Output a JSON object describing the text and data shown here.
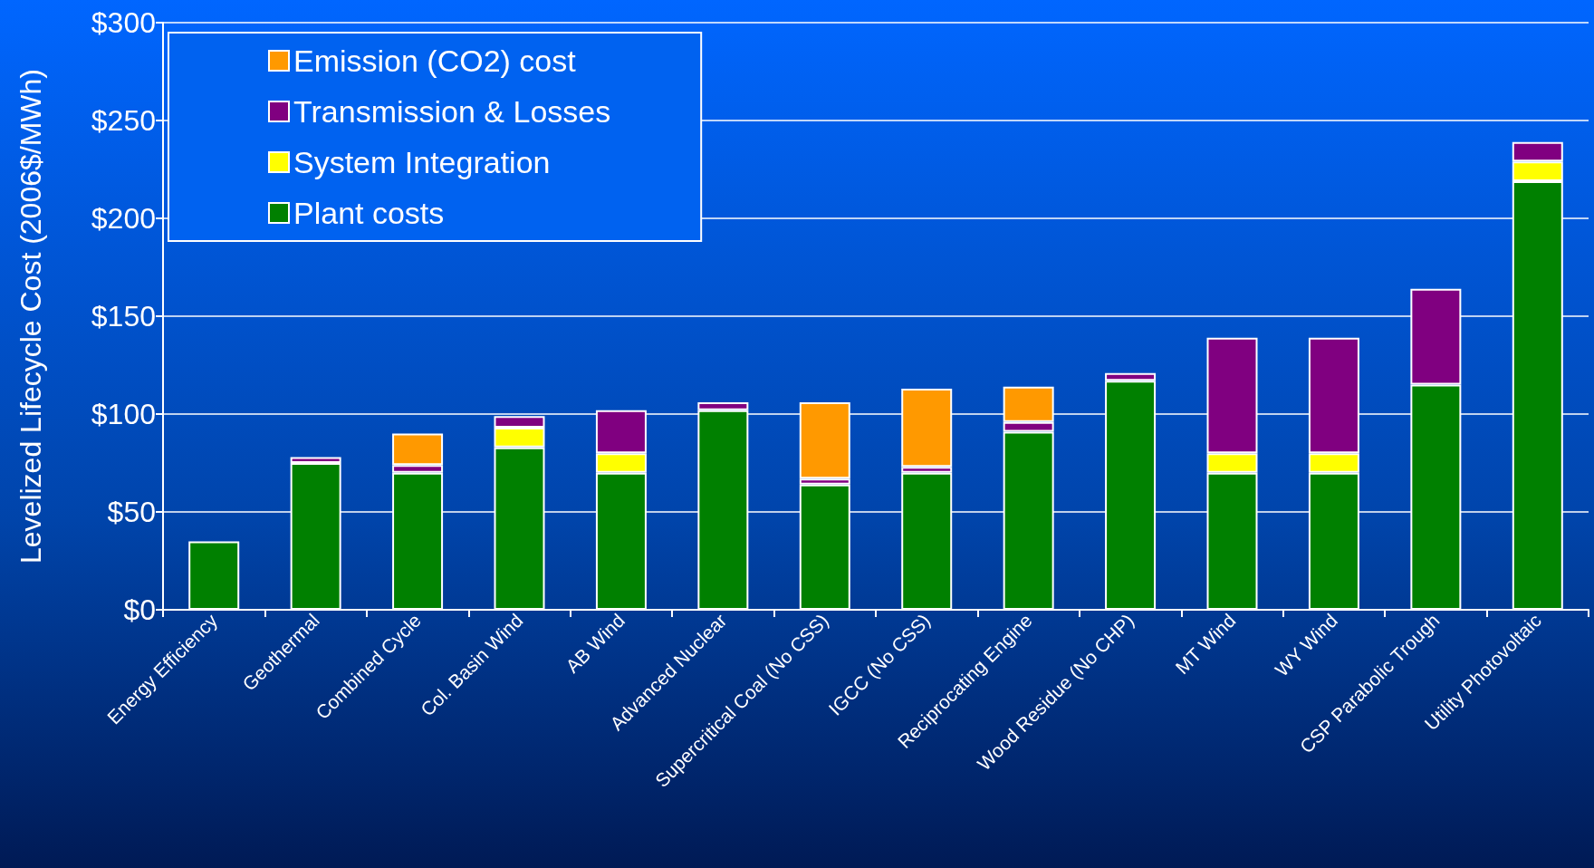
{
  "chart_data": {
    "type": "bar",
    "stacked": true,
    "ylabel": "Levelized Lifecycle Cost (2006$/MWh)",
    "categories": [
      "Energy Efficiency",
      "Geothermal",
      "Combined Cycle",
      "Col. Basin Wind",
      "AB Wind",
      "Advanced Nuclear",
      "Supercritical Coal (No CSS)",
      "IGCC (No CSS)",
      "Reciprocating Engine",
      "Wood Residue (No CHP)",
      "MT Wind",
      "WY Wind",
      "CSP Parabolic Trough",
      "Utility Photovoltaic"
    ],
    "series": [
      {
        "name": "Plant costs",
        "color": "#008000",
        "values": [
          35,
          75,
          70,
          83,
          70,
          102,
          64,
          70,
          91,
          117,
          70,
          70,
          115,
          219
        ]
      },
      {
        "name": "System Integration",
        "color": "#ffff00",
        "values": [
          null,
          null,
          null,
          10,
          10,
          null,
          null,
          null,
          null,
          null,
          10,
          10,
          null,
          10
        ]
      },
      {
        "name": "Transmission & Losses",
        "color": "#800080",
        "values": [
          null,
          3,
          4,
          6,
          22,
          4,
          3,
          3,
          5,
          4,
          59,
          59,
          49,
          10
        ]
      },
      {
        "name": "Emission (CO2) cost",
        "color": "#ff9900",
        "values": [
          null,
          null,
          16,
          null,
          null,
          null,
          39,
          40,
          18,
          null,
          null,
          null,
          null,
          null
        ]
      }
    ],
    "ylim": [
      0,
      300
    ],
    "yticks": [
      {
        "value": 0,
        "label": "$0"
      },
      {
        "value": 50,
        "label": "$50"
      },
      {
        "value": 100,
        "label": "$100"
      },
      {
        "value": 150,
        "label": "$150"
      },
      {
        "value": 200,
        "label": "$200"
      },
      {
        "value": 250,
        "label": "$250"
      },
      {
        "value": 300,
        "label": "$300"
      }
    ],
    "grid": "y",
    "legend": "top left"
  }
}
